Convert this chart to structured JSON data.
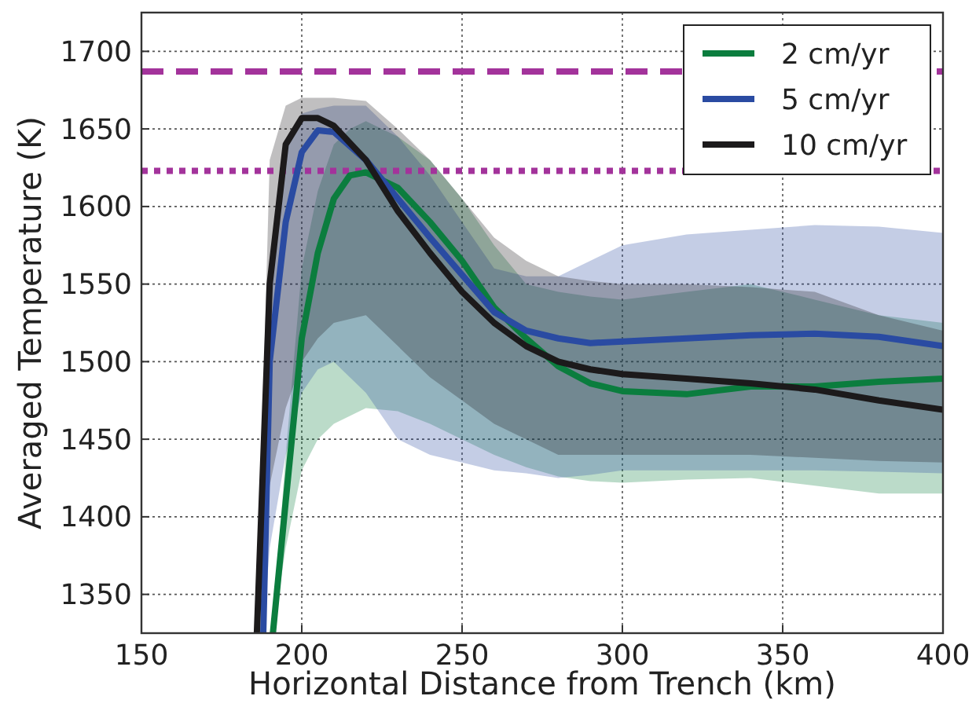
{
  "chart_data": {
    "type": "line",
    "xlabel": "Horizontal Distance from Trench (km)",
    "ylabel": "Averaged Temperature (K)",
    "xlim": [
      150,
      400
    ],
    "ylim": [
      1325,
      1725
    ],
    "xticks": [
      150,
      200,
      250,
      300,
      350,
      400
    ],
    "yticks": [
      1350,
      1400,
      1450,
      1500,
      1550,
      1600,
      1650,
      1700
    ],
    "grid": true,
    "legend": "top right",
    "line_style": "solid",
    "marker": "none",
    "ref_lines": [
      {
        "axis": "y",
        "value": 1687,
        "label": null,
        "color": "#a3339b",
        "line_style": "dashed"
      },
      {
        "axis": "y",
        "value": 1623,
        "label": null,
        "color": "#a3339b",
        "line_style": "dotted"
      }
    ],
    "series": [
      {
        "name": "2 cm/yr",
        "color": "#0b7d3e",
        "x": [
          191,
          195,
          200,
          205,
          210,
          215,
          220,
          230,
          240,
          250,
          260,
          270,
          280,
          290,
          300,
          320,
          340,
          360,
          380,
          400
        ],
        "values": [
          1325,
          1410,
          1515,
          1570,
          1605,
          1620,
          1622,
          1612,
          1590,
          1565,
          1535,
          1515,
          1497,
          1486,
          1481,
          1479,
          1484,
          1484,
          1487,
          1489
        ],
        "lower": [
          1325,
          1380,
          1430,
          1450,
          1460,
          1465,
          1470,
          1468,
          1460,
          1450,
          1440,
          1432,
          1426,
          1423,
          1422,
          1424,
          1425,
          1420,
          1415,
          1415
        ],
        "upper": [
          1330,
          1440,
          1560,
          1610,
          1640,
          1650,
          1655,
          1645,
          1630,
          1605,
          1575,
          1550,
          1545,
          1542,
          1540,
          1545,
          1550,
          1540,
          1530,
          1525
        ]
      },
      {
        "name": "5 cm/yr",
        "color": "#2a4ba2",
        "x": [
          188,
          190,
          195,
          200,
          205,
          210,
          220,
          230,
          240,
          250,
          260,
          270,
          280,
          290,
          300,
          320,
          340,
          360,
          380,
          400
        ],
        "values": [
          1325,
          1500,
          1590,
          1635,
          1649,
          1648,
          1630,
          1605,
          1580,
          1556,
          1532,
          1520,
          1515,
          1512,
          1513,
          1515,
          1517,
          1518,
          1516,
          1510
        ],
        "lower": [
          1325,
          1380,
          1440,
          1480,
          1495,
          1500,
          1480,
          1450,
          1440,
          1435,
          1430,
          1428,
          1425,
          1427,
          1430,
          1430,
          1430,
          1430,
          1429,
          1428
        ],
        "upper": [
          1330,
          1560,
          1640,
          1660,
          1663,
          1665,
          1665,
          1645,
          1620,
          1590,
          1560,
          1555,
          1555,
          1565,
          1575,
          1582,
          1585,
          1588,
          1587,
          1583
        ]
      },
      {
        "name": "10 cm/yr",
        "color": "#1c1a1b",
        "x": [
          186,
          190,
          195,
          200,
          205,
          210,
          220,
          230,
          240,
          250,
          260,
          270,
          280,
          290,
          300,
          320,
          340,
          360,
          380,
          400
        ],
        "values": [
          1325,
          1550,
          1640,
          1657,
          1657,
          1652,
          1630,
          1597,
          1570,
          1545,
          1525,
          1510,
          1500,
          1495,
          1492,
          1489,
          1486,
          1482,
          1475,
          1469
        ],
        "lower": [
          1325,
          1420,
          1470,
          1500,
          1515,
          1525,
          1530,
          1510,
          1490,
          1475,
          1460,
          1450,
          1440,
          1440,
          1440,
          1440,
          1440,
          1438,
          1436,
          1435
        ],
        "upper": [
          1330,
          1630,
          1665,
          1670,
          1670,
          1670,
          1668,
          1650,
          1630,
          1605,
          1580,
          1565,
          1555,
          1552,
          1550,
          1550,
          1548,
          1545,
          1530,
          1520
        ]
      }
    ]
  }
}
